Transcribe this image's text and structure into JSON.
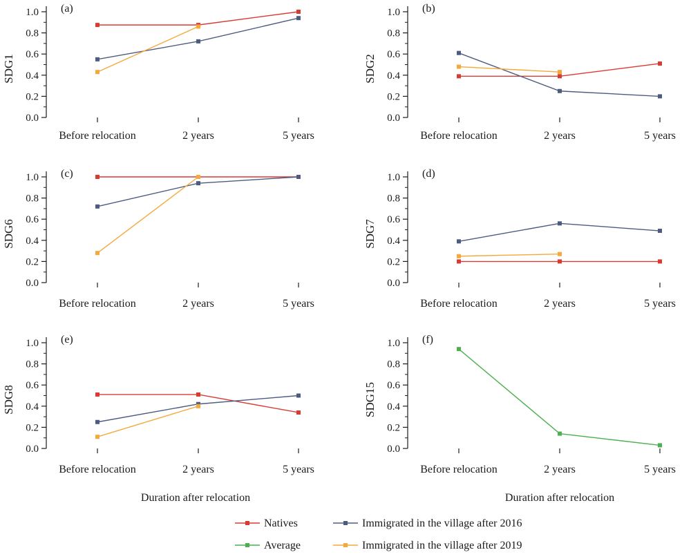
{
  "x_categories": [
    "Before relocation",
    "2 years",
    "5 years"
  ],
  "xlabel": "Duration after relocation",
  "colors": {
    "natives": "#d93a32",
    "immigrated_2016": "#4d5b80",
    "immigrated_2019": "#f5a93a",
    "average": "#4caf50",
    "axis": "#1a1a1a"
  },
  "legend": {
    "items": [
      {
        "key": "natives",
        "label": "Natives"
      },
      {
        "key": "immigrated_2016",
        "label": "Immigrated in the village after 2016"
      },
      {
        "key": "average",
        "label": "Average"
      },
      {
        "key": "immigrated_2019",
        "label": "Immigrated in the village after 2019"
      }
    ]
  },
  "chart_data": [
    {
      "type": "line",
      "panel": "(a)",
      "ylabel": "SDG1",
      "ylim": [
        0,
        1.0
      ],
      "yticks": [
        "0.0",
        "0.2",
        "0.4",
        "0.6",
        "0.8",
        "1.0"
      ],
      "categories": [
        "Before relocation",
        "2 years",
        "5 years"
      ],
      "series": [
        {
          "name": "Natives",
          "key": "natives",
          "values": [
            0.875,
            0.875,
            1.0
          ]
        },
        {
          "name": "Immigrated in the village after 2016",
          "key": "immigrated_2016",
          "values": [
            0.55,
            0.72,
            0.94
          ]
        },
        {
          "name": "Immigrated in the village after 2019",
          "key": "immigrated_2019",
          "values": [
            0.43,
            0.86,
            null
          ]
        }
      ]
    },
    {
      "type": "line",
      "panel": "(b)",
      "ylabel": "SDG2",
      "ylim": [
        0,
        1.0
      ],
      "yticks": [
        "0.0",
        "0.2",
        "0.4",
        "0.6",
        "0.8",
        "1.0"
      ],
      "categories": [
        "Before relocation",
        "2 years",
        "5 years"
      ],
      "series": [
        {
          "name": "Natives",
          "key": "natives",
          "values": [
            0.39,
            0.39,
            0.51
          ]
        },
        {
          "name": "Immigrated in the village after 2016",
          "key": "immigrated_2016",
          "values": [
            0.61,
            0.25,
            0.2
          ]
        },
        {
          "name": "Immigrated in the village after 2019",
          "key": "immigrated_2019",
          "values": [
            0.48,
            0.43,
            null
          ]
        }
      ]
    },
    {
      "type": "line",
      "panel": "(c)",
      "ylabel": "SDG6",
      "ylim": [
        0,
        1.0
      ],
      "yticks": [
        "0.0",
        "0.2",
        "0.4",
        "0.6",
        "0.8",
        "1.0"
      ],
      "categories": [
        "Before relocation",
        "2 years",
        "5 years"
      ],
      "series": [
        {
          "name": "Natives",
          "key": "natives",
          "values": [
            1.0,
            1.0,
            1.0
          ]
        },
        {
          "name": "Immigrated in the village after 2016",
          "key": "immigrated_2016",
          "values": [
            0.72,
            0.94,
            1.0
          ]
        },
        {
          "name": "Immigrated in the village after 2019",
          "key": "immigrated_2019",
          "values": [
            0.28,
            1.0,
            null
          ]
        }
      ]
    },
    {
      "type": "line",
      "panel": "(d)",
      "ylabel": "SDG7",
      "ylim": [
        0,
        1.0
      ],
      "yticks": [
        "0.0",
        "0.2",
        "0.4",
        "0.6",
        "0.8",
        "1.0"
      ],
      "categories": [
        "Before relocation",
        "2 years",
        "5 years"
      ],
      "series": [
        {
          "name": "Natives",
          "key": "natives",
          "values": [
            0.2,
            0.2,
            0.2
          ]
        },
        {
          "name": "Immigrated in the village after 2016",
          "key": "immigrated_2016",
          "values": [
            0.39,
            0.56,
            0.49
          ]
        },
        {
          "name": "Immigrated in the village after 2019",
          "key": "immigrated_2019",
          "values": [
            0.25,
            0.27,
            null
          ]
        }
      ]
    },
    {
      "type": "line",
      "panel": "(e)",
      "ylabel": "SDG8",
      "ylim": [
        0,
        1.0
      ],
      "yticks": [
        "0.0",
        "0.2",
        "0.4",
        "0.6",
        "0.8",
        "1.0"
      ],
      "categories": [
        "Before relocation",
        "2 years",
        "5 years"
      ],
      "series": [
        {
          "name": "Natives",
          "key": "natives",
          "values": [
            0.51,
            0.51,
            0.34
          ]
        },
        {
          "name": "Immigrated in the village after 2016",
          "key": "immigrated_2016",
          "values": [
            0.25,
            0.42,
            0.5
          ]
        },
        {
          "name": "Immigrated in the village after 2019",
          "key": "immigrated_2019",
          "values": [
            0.11,
            0.4,
            null
          ]
        }
      ]
    },
    {
      "type": "line",
      "panel": "(f)",
      "ylabel": "SDG15",
      "ylim": [
        0,
        1.0
      ],
      "yticks": [
        "0.0",
        "0.2",
        "0.4",
        "0.6",
        "0.8",
        "1.0"
      ],
      "categories": [
        "Before relocation",
        "2 years",
        "5 years"
      ],
      "series": [
        {
          "name": "Average",
          "key": "average",
          "values": [
            0.94,
            0.14,
            0.03
          ]
        }
      ]
    }
  ]
}
